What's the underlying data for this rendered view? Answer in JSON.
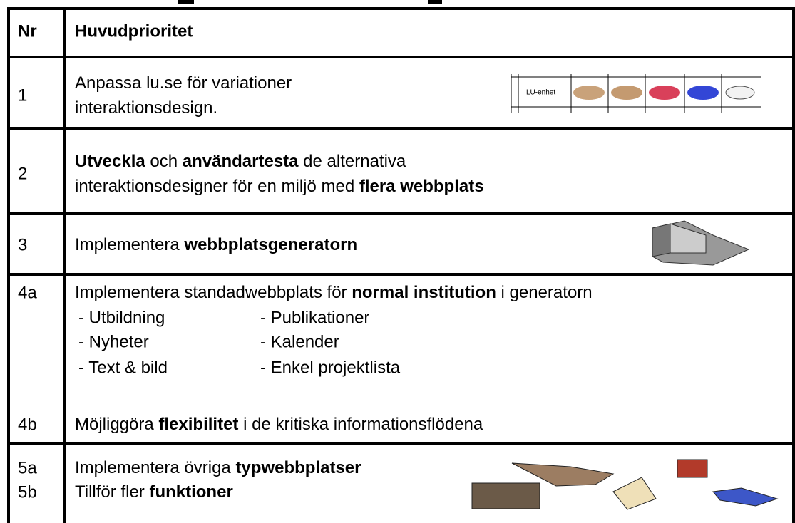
{
  "table": {
    "header": {
      "nr": "Nr",
      "title": "Huvudprioritet"
    },
    "rows": [
      {
        "nr": [
          "1"
        ],
        "lines": [
          [
            {
              "t": "Anpassa lu.se för variationer"
            }
          ],
          [
            {
              "t": "interaktionsdesign."
            }
          ]
        ],
        "image_label": "LU-enhet"
      },
      {
        "nr": [
          "2"
        ],
        "lines": [
          [
            {
              "t": "Utveckla",
              "b": true
            },
            {
              "t": " och "
            },
            {
              "t": "användartesta",
              "b": true
            },
            {
              "t": " de alternativa"
            }
          ],
          [
            {
              "t": "interaktionsdesigner för en miljö med "
            },
            {
              "t": "flera webbplats",
              "b": true
            }
          ]
        ]
      },
      {
        "nr": [
          "3"
        ],
        "lines": [
          [
            {
              "t": "Implementera "
            },
            {
              "t": "webbplatsgeneratorn",
              "b": true
            }
          ]
        ]
      },
      {
        "nr": [
          "4a",
          "4b"
        ],
        "lines": [
          [
            {
              "t": "Implementera standadwebbplats för "
            },
            {
              "t": "normal institution",
              "b": true
            },
            {
              "t": " i generatorn"
            }
          ],
          [
            {
              "t": "Möjliggöra "
            },
            {
              "t": "flexibilitet",
              "b": true
            },
            {
              "t": " i de kritiska informationsflödena"
            }
          ]
        ],
        "list": [
          [
            "- Utbildning",
            "- Publikationer"
          ],
          [
            "- Nyheter",
            "- Kalender"
          ],
          [
            "- Text & bild",
            "- Enkel projektlista"
          ]
        ]
      },
      {
        "nr": [
          "5a",
          "5b"
        ],
        "lines": [
          [
            {
              "t": "Implementera övriga "
            },
            {
              "t": "typwebbplatser",
              "b": true
            }
          ],
          [
            {
              "t": "Tillför fler "
            },
            {
              "t": "funktioner",
              "b": true
            }
          ]
        ]
      }
    ]
  }
}
